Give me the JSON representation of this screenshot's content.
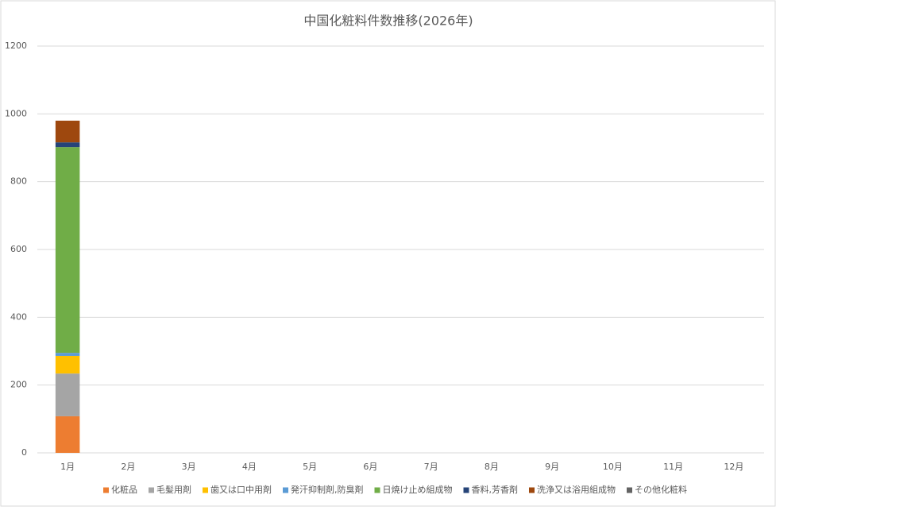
{
  "chart_data": {
    "type": "stacked_bar",
    "title": "中国化粧料件数推移(2026年)",
    "categories": [
      "1月",
      "2月",
      "3月",
      "4月",
      "5月",
      "6月",
      "7月",
      "8月",
      "9月",
      "10月",
      "11月",
      "12月"
    ],
    "series": [
      {
        "name": "化粧品",
        "color": "#ed7d31",
        "values": [
          108,
          null,
          null,
          null,
          null,
          null,
          null,
          null,
          null,
          null,
          null,
          null
        ]
      },
      {
        "name": "毛髪用剤",
        "color": "#a5a5a5",
        "values": [
          126,
          null,
          null,
          null,
          null,
          null,
          null,
          null,
          null,
          null,
          null,
          null
        ]
      },
      {
        "name": "歯又は口中用剤",
        "color": "#ffc000",
        "values": [
          52,
          null,
          null,
          null,
          null,
          null,
          null,
          null,
          null,
          null,
          null,
          null
        ]
      },
      {
        "name": "発汗抑制剤,防臭剤",
        "color": "#5b9bd5",
        "values": [
          9,
          null,
          null,
          null,
          null,
          null,
          null,
          null,
          null,
          null,
          null,
          null
        ]
      },
      {
        "name": "日焼け止め組成物",
        "color": "#70ad47",
        "values": [
          607,
          null,
          null,
          null,
          null,
          null,
          null,
          null,
          null,
          null,
          null,
          null
        ]
      },
      {
        "name": "香料,芳香剤",
        "color": "#264478",
        "values": [
          14,
          null,
          null,
          null,
          null,
          null,
          null,
          null,
          null,
          null,
          null,
          null
        ]
      },
      {
        "name": "洗浄又は浴用組成物",
        "color": "#9e480e",
        "values": [
          64,
          null,
          null,
          null,
          null,
          null,
          null,
          null,
          null,
          null,
          null,
          null
        ]
      },
      {
        "name": "その他化粧料",
        "color": "#636363",
        "values": [
          0,
          null,
          null,
          null,
          null,
          null,
          null,
          null,
          null,
          null,
          null,
          null
        ]
      }
    ],
    "ylim": [
      0,
      1200
    ],
    "yticks": [
      0,
      200,
      400,
      600,
      800,
      1000,
      1200
    ],
    "grid": true,
    "legend": "bottom"
  }
}
